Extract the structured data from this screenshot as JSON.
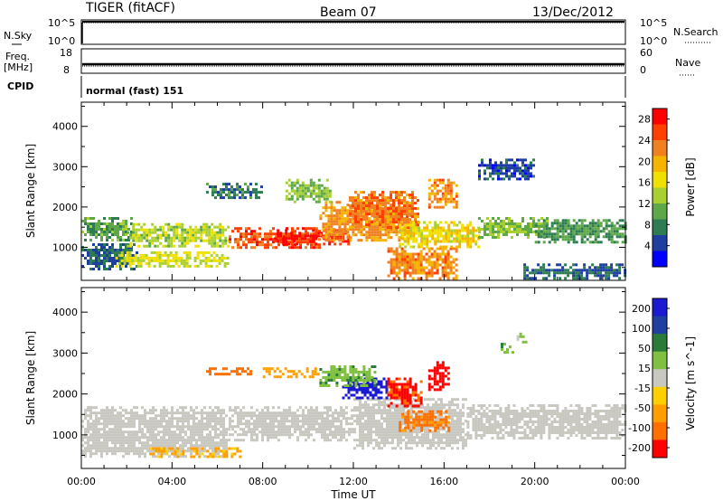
{
  "header": {
    "radar": "TIGER (fitACF)",
    "beam": "Beam 07",
    "date": "13/Dec/2012"
  },
  "strips": {
    "nsky_label": "N.Sky",
    "nsky_ticks": [
      "10^5",
      "10^0"
    ],
    "nsearch_label": "N.Search",
    "nsearch_ticks": [
      "10^5",
      "10^0"
    ],
    "freq_label_1": "Freq.",
    "freq_label_2": "[MHz]",
    "freq_ticks": [
      "18",
      "8"
    ],
    "nave_label": "Nave",
    "nave_ticks": [
      "60",
      "0"
    ],
    "cpid_label": "CPID",
    "cpid_text": "normal (fast) 151"
  },
  "colors": {
    "power_scale": [
      "#0000ff",
      "#1f3fa0",
      "#2e7d52",
      "#5fa84a",
      "#a8d030",
      "#f0e000",
      "#f4b400",
      "#f08020",
      "#ff4000",
      "#ff0000"
    ],
    "velocity_scale": [
      "#1a1ad0",
      "#2040a0",
      "#2a7a3a",
      "#80c040",
      "#c8c8c0",
      "#ffd000",
      "#ffa000",
      "#ff7000",
      "#ff0000"
    ]
  },
  "chart_data": [
    {
      "type": "heatmap",
      "name": "power-panel",
      "ylabel": "Slant Range [km]",
      "xlabel": "",
      "x_ticks": [
        "00:00",
        "04:00",
        "08:00",
        "12:00",
        "16:00",
        "20:00",
        "00:00"
      ],
      "x_range_hours": [
        0,
        24
      ],
      "y_ticks": [
        1000,
        2000,
        3000,
        4000
      ],
      "ylim": [
        180,
        4600
      ],
      "colorbar": {
        "title": "Power [dB]",
        "ticks": [
          4,
          8,
          12,
          16,
          20,
          24,
          28
        ],
        "range": [
          0,
          30
        ]
      },
      "bands": [
        {
          "t": [
            0,
            2.2
          ],
          "r": [
            1150,
            1750
          ],
          "v": 10
        },
        {
          "t": [
            0,
            2.5
          ],
          "r": [
            450,
            1100
          ],
          "v": 6
        },
        {
          "t": [
            1.5,
            6.5
          ],
          "r": [
            500,
            900
          ],
          "v": 15
        },
        {
          "t": [
            2,
            6.5
          ],
          "r": [
            1050,
            1600
          ],
          "v": 14
        },
        {
          "t": [
            6.5,
            10.5
          ],
          "r": [
            1000,
            1500
          ],
          "v": 25
        },
        {
          "t": [
            8.5,
            11.8
          ],
          "r": [
            1050,
            1450
          ],
          "v": 29
        },
        {
          "t": [
            10.5,
            14.5
          ],
          "r": [
            1150,
            2150
          ],
          "v": 21
        },
        {
          "t": [
            11.8,
            14.8
          ],
          "r": [
            1500,
            2400
          ],
          "v": 23
        },
        {
          "t": [
            13.5,
            16.5
          ],
          "r": [
            250,
            1000
          ],
          "v": 22
        },
        {
          "t": [
            14,
            17.5
          ],
          "r": [
            1000,
            1650
          ],
          "v": 17
        },
        {
          "t": [
            15.3,
            16.5
          ],
          "r": [
            2000,
            2700
          ],
          "v": 22
        },
        {
          "t": [
            9,
            11
          ],
          "r": [
            2100,
            2700
          ],
          "v": 12
        },
        {
          "t": [
            5.5,
            8
          ],
          "r": [
            2250,
            2600
          ],
          "v": 7
        },
        {
          "t": [
            17.5,
            20.5
          ],
          "r": [
            1250,
            1750
          ],
          "v": 12
        },
        {
          "t": [
            20,
            24
          ],
          "r": [
            1150,
            1700
          ],
          "v": 9
        },
        {
          "t": [
            19.5,
            24
          ],
          "r": [
            250,
            600
          ],
          "v": 6
        },
        {
          "t": [
            17.5,
            20
          ],
          "r": [
            2700,
            3200
          ],
          "v": 5
        }
      ]
    },
    {
      "type": "heatmap",
      "name": "velocity-panel",
      "ylabel": "Slant Range [km]",
      "xlabel": "Time UT",
      "x_ticks": [
        "00:00",
        "04:00",
        "08:00",
        "12:00",
        "16:00",
        "20:00",
        "00:00"
      ],
      "x_range_hours": [
        0,
        24
      ],
      "y_ticks": [
        1000,
        2000,
        3000,
        4000
      ],
      "ylim": [
        180,
        4600
      ],
      "colorbar": {
        "title": "Velocity [m s^-1]",
        "ticks": [
          200,
          100,
          50,
          15,
          -15,
          -50,
          -100,
          -200
        ],
        "range": [
          -250,
          250
        ]
      },
      "bands": [
        {
          "t": [
            0,
            6.5
          ],
          "r": [
            500,
            1700
          ],
          "v": 0
        },
        {
          "t": [
            6.5,
            12
          ],
          "r": [
            900,
            1700
          ],
          "v": 0
        },
        {
          "t": [
            12,
            17
          ],
          "r": [
            700,
            1900
          ],
          "v": 0
        },
        {
          "t": [
            17,
            24
          ],
          "r": [
            900,
            1750
          ],
          "v": 0
        },
        {
          "t": [
            11.5,
            13.5
          ],
          "r": [
            1900,
            2400
          ],
          "v": 220
        },
        {
          "t": [
            13.5,
            15
          ],
          "r": [
            1700,
            2400
          ],
          "v": -210
        },
        {
          "t": [
            14,
            16.2
          ],
          "r": [
            1100,
            1600
          ],
          "v": -110
        },
        {
          "t": [
            15.3,
            16.2
          ],
          "r": [
            2100,
            2800
          ],
          "v": -220
        },
        {
          "t": [
            10.5,
            13
          ],
          "r": [
            2200,
            2700
          ],
          "v": 40
        },
        {
          "t": [
            8,
            10.5
          ],
          "r": [
            2450,
            2650
          ],
          "v": -70
        },
        {
          "t": [
            5.5,
            7.5
          ],
          "r": [
            2500,
            2650
          ],
          "v": -150
        },
        {
          "t": [
            3,
            7
          ],
          "r": [
            500,
            700
          ],
          "v": -60
        },
        {
          "t": [
            19.2,
            19.6
          ],
          "r": [
            3250,
            3500
          ],
          "v": 30
        },
        {
          "t": [
            18.5,
            19
          ],
          "r": [
            3000,
            3250
          ],
          "v": 40
        }
      ]
    }
  ]
}
